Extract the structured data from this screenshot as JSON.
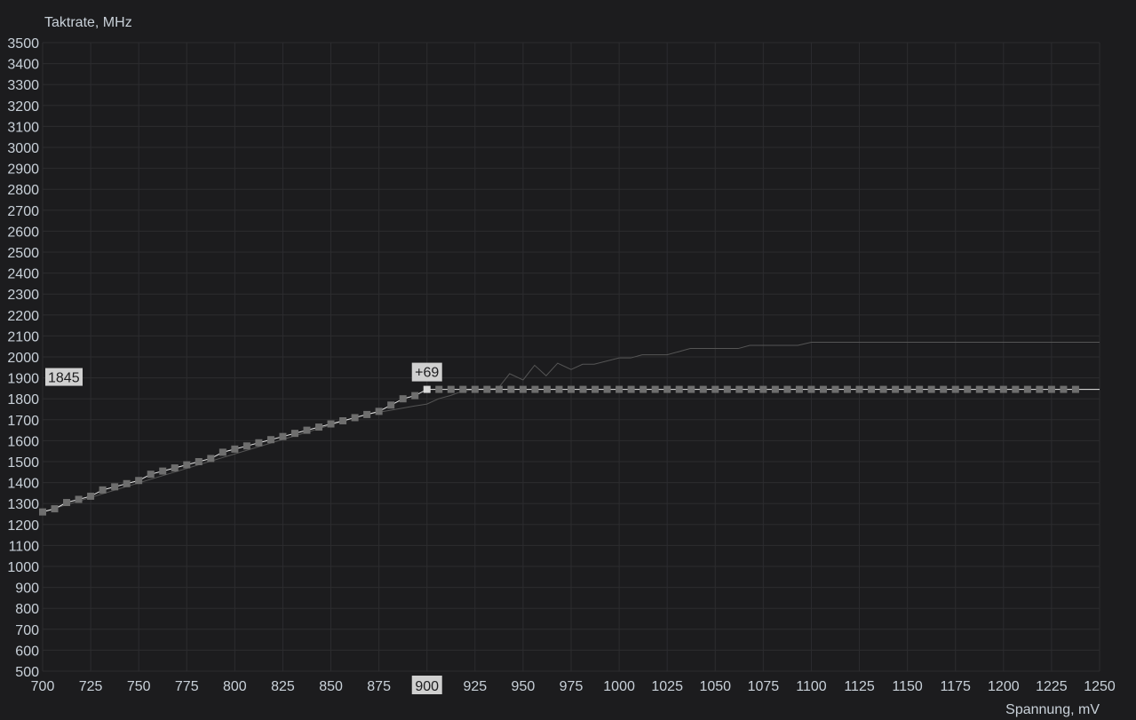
{
  "chart_data": {
    "type": "line",
    "ylabel": "Taktrate, MHz",
    "xlabel": "Spannung, mV",
    "xlim": [
      700,
      1250
    ],
    "ylim": [
      500,
      3500
    ],
    "x_ticks": [
      700,
      725,
      750,
      775,
      800,
      825,
      850,
      875,
      900,
      925,
      950,
      975,
      1000,
      1025,
      1050,
      1075,
      1100,
      1125,
      1150,
      1175,
      1200,
      1225,
      1250
    ],
    "y_ticks": [
      500,
      600,
      700,
      800,
      900,
      1000,
      1100,
      1200,
      1300,
      1400,
      1500,
      1600,
      1700,
      1800,
      1900,
      2000,
      2100,
      2200,
      2300,
      2400,
      2500,
      2600,
      2700,
      2800,
      2900,
      3000,
      3100,
      3200,
      3300,
      3400,
      3500
    ],
    "grid": true,
    "colors": {
      "background": "#1c1c1e",
      "grid": "#2c2c2f",
      "curve": "#e6e6e6",
      "points": "#6e6e6e",
      "selected_point": "#d8d8d8",
      "reference": "#555555",
      "text": "#c9d1d9"
    },
    "curve": {
      "x": [
        700,
        706.25,
        712.5,
        718.75,
        725,
        731.25,
        737.5,
        743.75,
        750,
        756.25,
        762.5,
        768.75,
        775,
        781.25,
        787.5,
        793.75,
        800,
        806.25,
        812.5,
        818.75,
        825,
        831.25,
        837.5,
        843.75,
        850,
        856.25,
        862.5,
        868.75,
        875,
        881.25,
        887.5,
        893.75,
        900,
        906.25,
        912.5,
        918.75,
        925,
        931.25,
        937.5,
        943.75,
        950,
        956.25,
        962.5,
        968.75,
        975,
        981.25,
        987.5,
        993.75,
        1000,
        1006.25,
        1012.5,
        1018.75,
        1025,
        1031.25,
        1037.5,
        1043.75,
        1050,
        1056.25,
        1062.5,
        1068.75,
        1075,
        1081.25,
        1087.5,
        1093.75,
        1100,
        1106.25,
        1112.5,
        1118.75,
        1125,
        1131.25,
        1137.5,
        1143.75,
        1150,
        1156.25,
        1162.5,
        1168.75,
        1175,
        1181.25,
        1187.5,
        1193.75,
        1200,
        1206.25,
        1212.5,
        1218.75,
        1225,
        1231.25,
        1237.5
      ],
      "y": [
        1260,
        1275,
        1305,
        1320,
        1335,
        1365,
        1380,
        1395,
        1410,
        1440,
        1455,
        1470,
        1485,
        1500,
        1515,
        1545,
        1560,
        1575,
        1590,
        1605,
        1620,
        1635,
        1650,
        1665,
        1680,
        1695,
        1710,
        1725,
        1740,
        1770,
        1800,
        1815,
        1845,
        1845,
        1845,
        1845,
        1845,
        1845,
        1845,
        1845,
        1845,
        1845,
        1845,
        1845,
        1845,
        1845,
        1845,
        1845,
        1845,
        1845,
        1845,
        1845,
        1845,
        1845,
        1845,
        1845,
        1845,
        1845,
        1845,
        1845,
        1845,
        1845,
        1845,
        1845,
        1845,
        1845,
        1845,
        1845,
        1845,
        1845,
        1845,
        1845,
        1845,
        1845,
        1845,
        1845,
        1845,
        1845,
        1845,
        1845,
        1845,
        1845,
        1845,
        1845,
        1845,
        1845,
        1845
      ],
      "line_end": [
        1250,
        1845
      ]
    },
    "reference": {
      "x": [
        700,
        868,
        881,
        893,
        900,
        906,
        912,
        918,
        925,
        937,
        943,
        950,
        956,
        962,
        968,
        975,
        981,
        987,
        1000,
        1006,
        1012,
        1025,
        1031,
        1037,
        1062,
        1068,
        1093,
        1100,
        1250
      ],
      "y": [
        1260,
        1725,
        1745,
        1765,
        1775,
        1800,
        1815,
        1835,
        1845,
        1850,
        1920,
        1890,
        1960,
        1910,
        1970,
        1940,
        1965,
        1965,
        1995,
        1995,
        2010,
        2010,
        2025,
        2040,
        2040,
        2055,
        2055,
        2070,
        2070
      ]
    },
    "selected": {
      "x": 900,
      "y": 1845,
      "x_label": "900",
      "y_label": "1845",
      "offset_label": "+69"
    }
  }
}
